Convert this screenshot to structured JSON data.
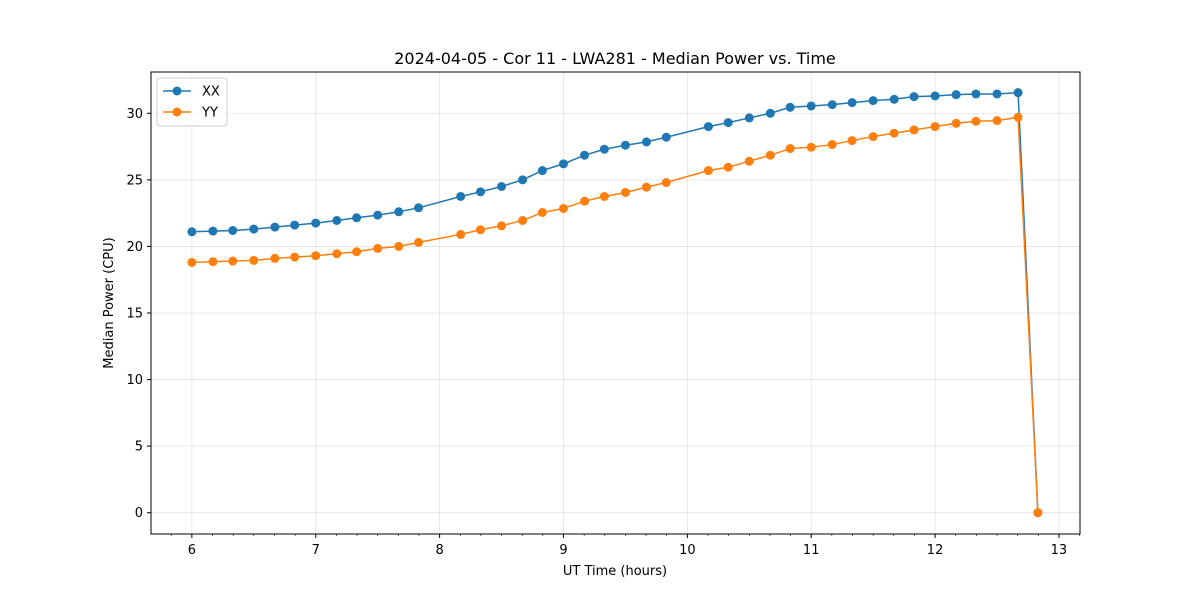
{
  "chart_data": {
    "type": "line",
    "title": "2024-04-05 - Cor 11 - LWA281 - Median Power vs. Time",
    "xlabel": "UT Time (hours)",
    "ylabel": "Median Power (CPU)",
    "xlim": [
      5.67,
      13.17
    ],
    "ylim": [
      -1.6,
      33.1
    ],
    "xticks": [
      6,
      7,
      8,
      9,
      10,
      11,
      12,
      13
    ],
    "yticks": [
      0,
      5,
      10,
      15,
      20,
      25,
      30
    ],
    "grid": true,
    "legend_position": "top-left",
    "x": [
      6.0,
      6.17,
      6.33,
      6.5,
      6.67,
      6.83,
      7.0,
      7.17,
      7.33,
      7.5,
      7.67,
      7.83,
      8.17,
      8.33,
      8.5,
      8.67,
      8.83,
      9.0,
      9.17,
      9.33,
      9.5,
      9.67,
      9.83,
      10.17,
      10.33,
      10.5,
      10.67,
      10.83,
      11.0,
      11.17,
      11.33,
      11.5,
      11.67,
      11.83,
      12.0,
      12.17,
      12.33,
      12.5,
      12.67,
      12.83
    ],
    "series": [
      {
        "name": "XX",
        "color": "#1f77b4",
        "values": [
          21.1,
          21.15,
          21.2,
          21.3,
          21.45,
          21.6,
          21.75,
          21.95,
          22.15,
          22.35,
          22.6,
          22.9,
          23.75,
          24.1,
          24.5,
          25.0,
          25.7,
          26.2,
          26.85,
          27.3,
          27.6,
          27.85,
          28.2,
          29.0,
          29.3,
          29.65,
          30.0,
          30.45,
          30.55,
          30.65,
          30.8,
          30.95,
          31.05,
          31.25,
          31.3,
          31.4,
          31.45,
          31.45,
          31.55,
          0.0
        ]
      },
      {
        "name": "YY",
        "color": "#ff7f0e",
        "values": [
          18.8,
          18.85,
          18.9,
          18.95,
          19.1,
          19.2,
          19.3,
          19.45,
          19.6,
          19.85,
          20.0,
          20.3,
          20.9,
          21.25,
          21.55,
          21.95,
          22.55,
          22.85,
          23.4,
          23.75,
          24.05,
          24.45,
          24.8,
          25.7,
          25.95,
          26.4,
          26.85,
          27.35,
          27.45,
          27.65,
          27.95,
          28.25,
          28.5,
          28.75,
          29.0,
          29.25,
          29.4,
          29.45,
          29.7,
          0.0
        ]
      }
    ]
  }
}
